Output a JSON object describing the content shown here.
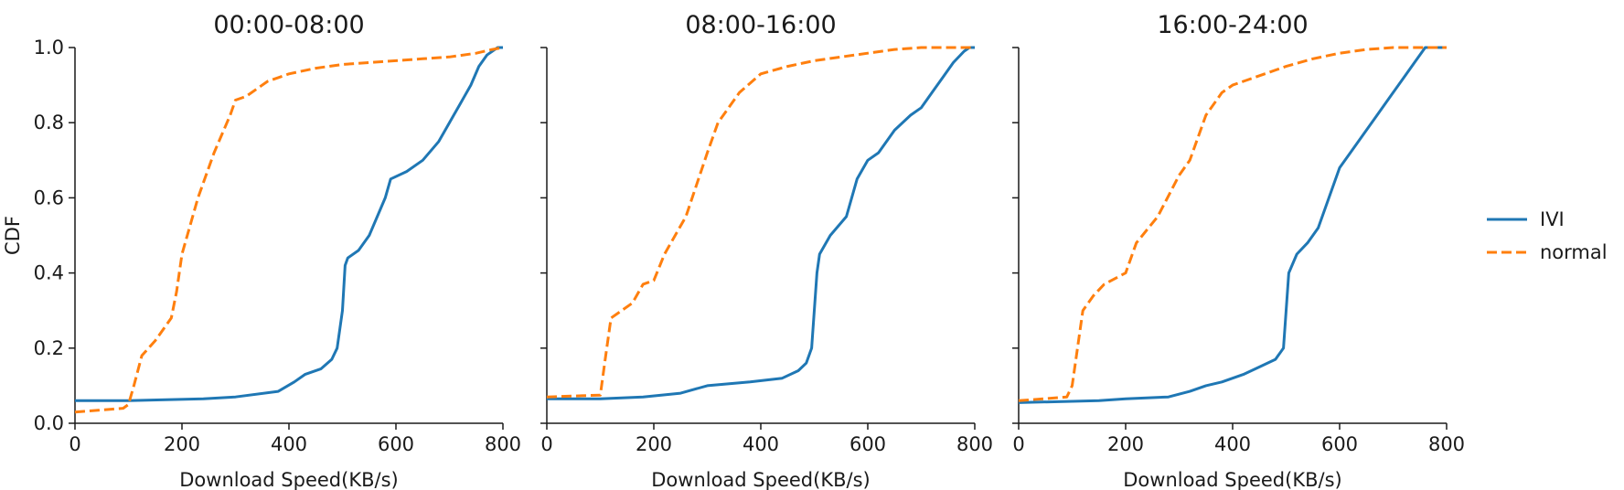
{
  "colors": {
    "IVI": "#1f77b4",
    "normal": "#ff7f0e",
    "axis": "#1a1a1a"
  },
  "legend": {
    "position": "right",
    "items": [
      "IVI",
      "normal"
    ]
  },
  "chart_data": [
    {
      "type": "line",
      "title": "00:00-08:00",
      "xlabel": "Download Speed(KB/s)",
      "ylabel": "CDF",
      "xlim": [
        0,
        800
      ],
      "ylim": [
        0.0,
        1.0
      ],
      "xticks": [
        "0",
        "200",
        "400",
        "600",
        "800"
      ],
      "yticks": [
        "0.0",
        "0.2",
        "0.4",
        "0.6",
        "0.8",
        "1.0"
      ],
      "grid": false,
      "series": [
        {
          "name": "IVI",
          "style": "solid",
          "x": [
            0,
            100,
            240,
            300,
            380,
            410,
            430,
            460,
            480,
            490,
            500,
            505,
            510,
            530,
            550,
            580,
            590,
            620,
            650,
            680,
            700,
            720,
            740,
            755,
            770,
            790,
            800
          ],
          "y": [
            0.06,
            0.06,
            0.065,
            0.07,
            0.085,
            0.11,
            0.13,
            0.145,
            0.17,
            0.2,
            0.3,
            0.42,
            0.44,
            0.46,
            0.5,
            0.6,
            0.65,
            0.67,
            0.7,
            0.75,
            0.8,
            0.85,
            0.9,
            0.95,
            0.98,
            1.0,
            1.0
          ]
        },
        {
          "name": "normal",
          "style": "dashed",
          "x": [
            0,
            90,
            100,
            110,
            125,
            150,
            180,
            190,
            200,
            230,
            260,
            290,
            300,
            320,
            360,
            380,
            400,
            450,
            500,
            550,
            600,
            650,
            700,
            750,
            780,
            800
          ],
          "y": [
            0.03,
            0.04,
            0.05,
            0.1,
            0.18,
            0.22,
            0.28,
            0.35,
            0.45,
            0.6,
            0.72,
            0.82,
            0.86,
            0.87,
            0.91,
            0.92,
            0.93,
            0.945,
            0.955,
            0.96,
            0.965,
            0.97,
            0.975,
            0.985,
            0.995,
            1.0
          ]
        }
      ]
    },
    {
      "type": "line",
      "title": "08:00-16:00",
      "xlabel": "Download Speed(KB/s)",
      "ylabel": "",
      "xlim": [
        0,
        800
      ],
      "ylim": [
        0.0,
        1.0
      ],
      "xticks": [
        "0",
        "200",
        "400",
        "600",
        "800"
      ],
      "yticks": [],
      "grid": false,
      "series": [
        {
          "name": "IVI",
          "style": "solid",
          "x": [
            0,
            100,
            180,
            250,
            300,
            380,
            440,
            470,
            485,
            495,
            500,
            505,
            510,
            530,
            560,
            580,
            600,
            620,
            650,
            680,
            700,
            720,
            740,
            760,
            780,
            790,
            800
          ],
          "y": [
            0.065,
            0.065,
            0.07,
            0.08,
            0.1,
            0.11,
            0.12,
            0.14,
            0.16,
            0.2,
            0.3,
            0.4,
            0.45,
            0.5,
            0.55,
            0.65,
            0.7,
            0.72,
            0.78,
            0.82,
            0.84,
            0.88,
            0.92,
            0.96,
            0.99,
            1.0,
            1.0
          ]
        },
        {
          "name": "normal",
          "style": "dashed",
          "x": [
            0,
            100,
            110,
            120,
            160,
            180,
            200,
            220,
            260,
            300,
            320,
            360,
            400,
            450,
            500,
            550,
            600,
            650,
            700,
            720,
            800
          ],
          "y": [
            0.07,
            0.075,
            0.18,
            0.28,
            0.32,
            0.37,
            0.38,
            0.45,
            0.55,
            0.72,
            0.8,
            0.88,
            0.93,
            0.95,
            0.965,
            0.975,
            0.985,
            0.995,
            1.0,
            1.0,
            1.0
          ]
        }
      ]
    },
    {
      "type": "line",
      "title": "16:00-24:00",
      "xlabel": "Download Speed(KB/s)",
      "ylabel": "",
      "xlim": [
        0,
        800
      ],
      "ylim": [
        0.0,
        1.0
      ],
      "xticks": [
        "0",
        "200",
        "400",
        "600",
        "800"
      ],
      "yticks": [],
      "grid": false,
      "series": [
        {
          "name": "IVI",
          "style": "solid",
          "x": [
            0,
            150,
            200,
            280,
            320,
            350,
            380,
            420,
            450,
            480,
            495,
            500,
            505,
            520,
            540,
            560,
            580,
            600,
            620,
            650,
            680,
            700,
            720,
            740,
            760,
            780,
            800
          ],
          "y": [
            0.055,
            0.06,
            0.065,
            0.07,
            0.085,
            0.1,
            0.11,
            0.13,
            0.15,
            0.17,
            0.2,
            0.3,
            0.4,
            0.45,
            0.48,
            0.52,
            0.6,
            0.68,
            0.72,
            0.78,
            0.84,
            0.88,
            0.92,
            0.96,
            1.0,
            1.0,
            1.0
          ]
        },
        {
          "name": "normal",
          "style": "dashed",
          "x": [
            0,
            90,
            100,
            120,
            140,
            160,
            200,
            220,
            260,
            300,
            320,
            350,
            380,
            400,
            420,
            460,
            500,
            550,
            600,
            650,
            700,
            720,
            800
          ],
          "y": [
            0.06,
            0.07,
            0.1,
            0.3,
            0.34,
            0.37,
            0.4,
            0.48,
            0.55,
            0.66,
            0.7,
            0.82,
            0.88,
            0.9,
            0.91,
            0.93,
            0.95,
            0.97,
            0.985,
            0.995,
            1.0,
            1.0,
            1.0
          ]
        }
      ]
    }
  ]
}
